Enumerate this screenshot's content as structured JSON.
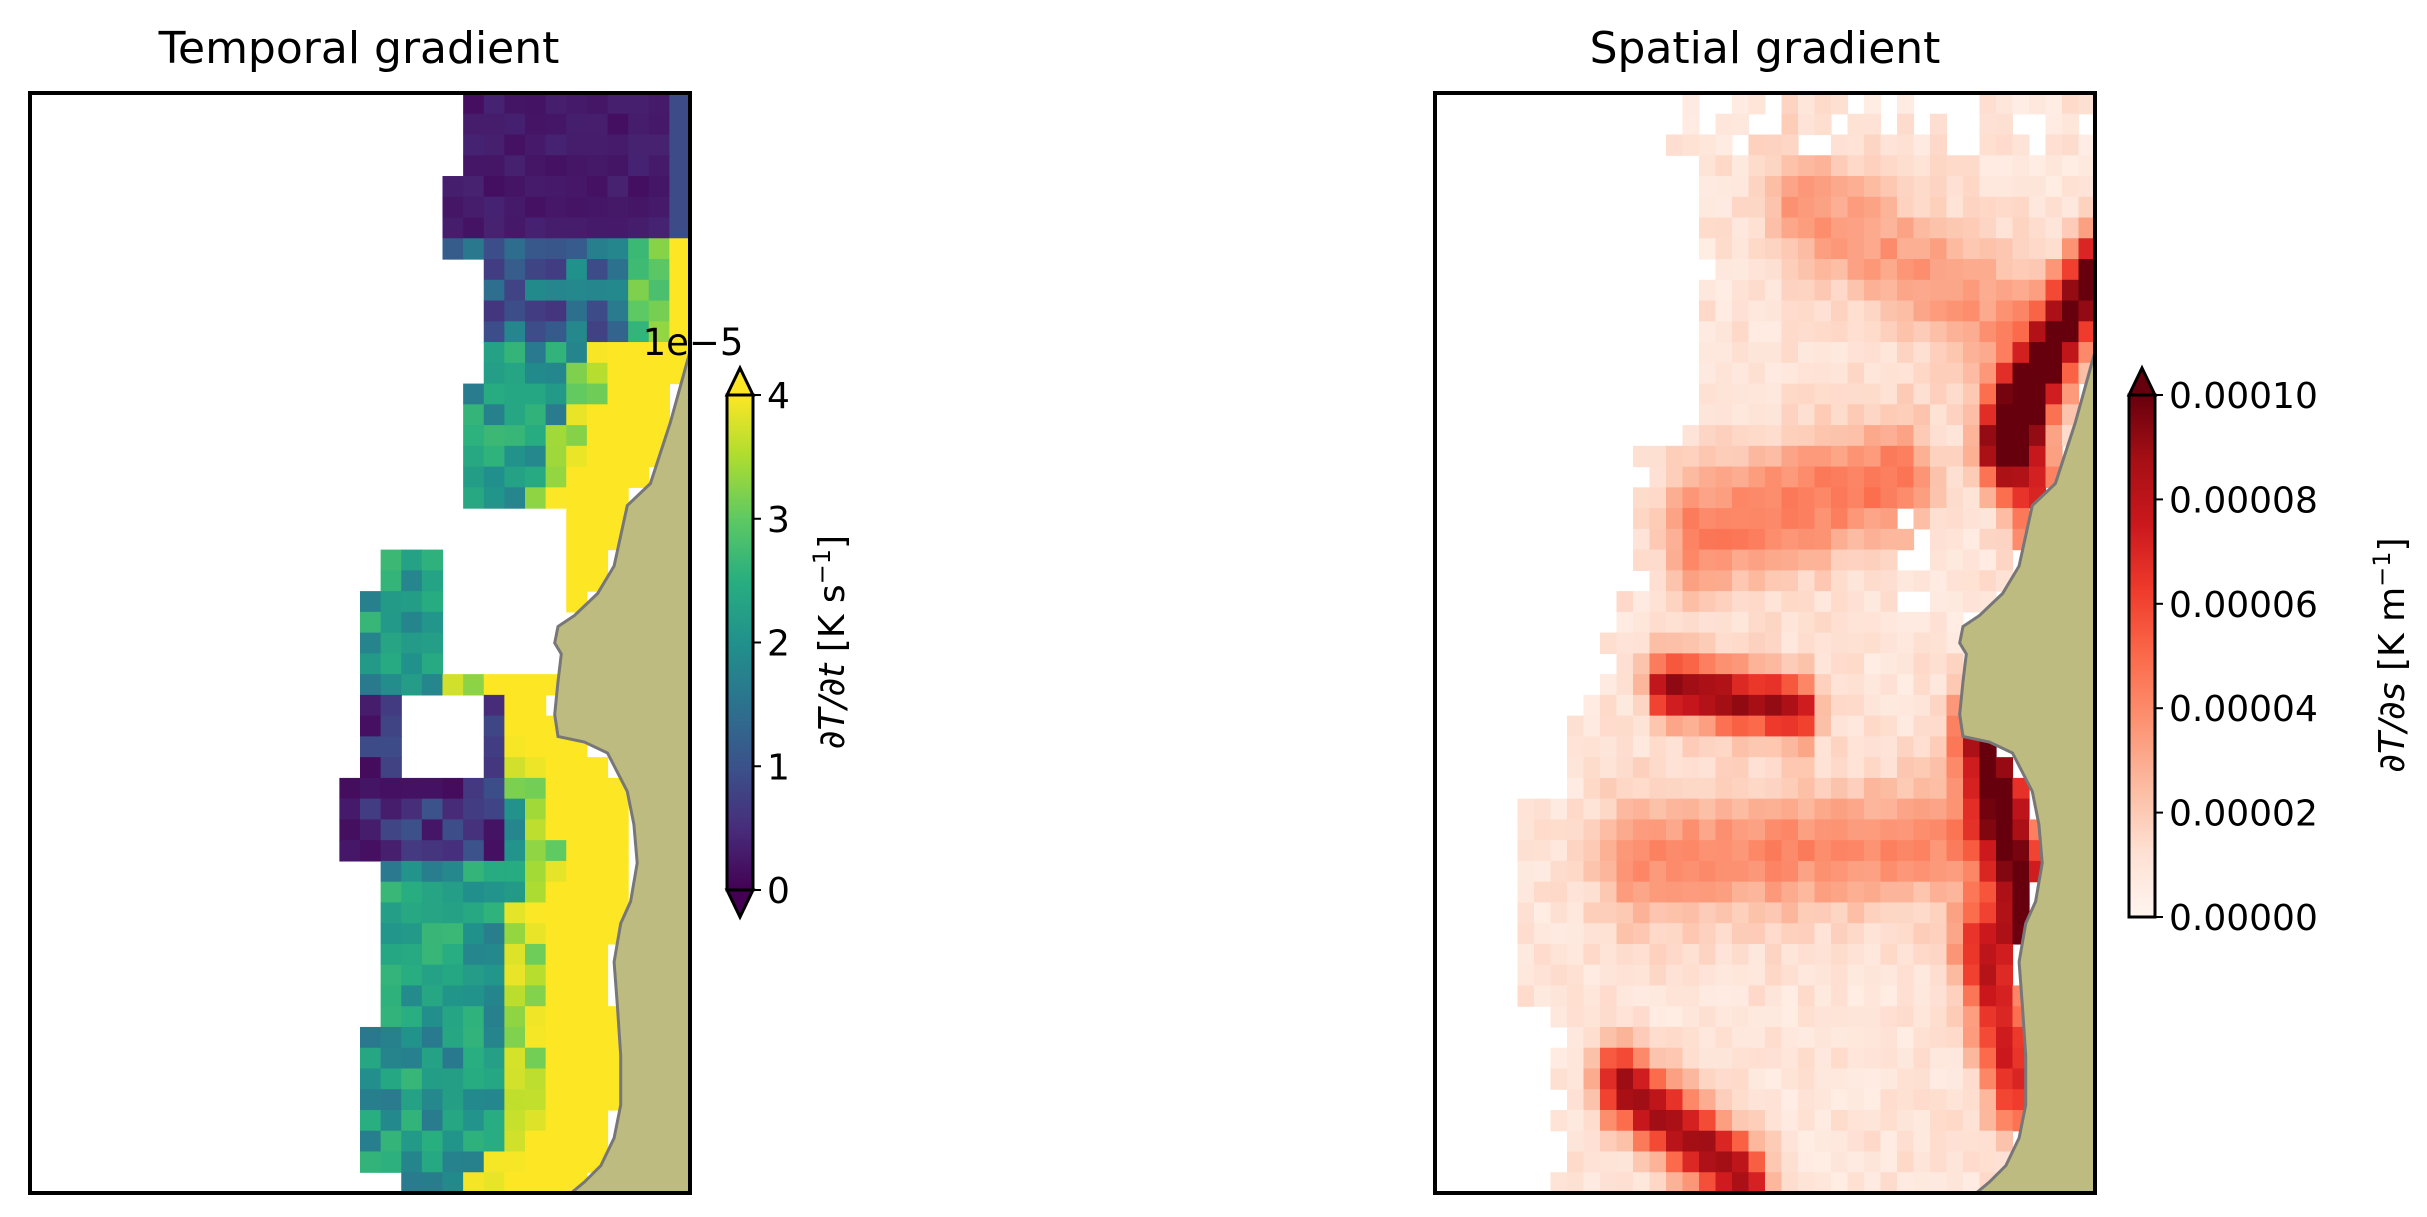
{
  "chart_data": [
    {
      "type": "heatmap",
      "title": "Temporal gradient",
      "colormap": "viridis",
      "colorbar": {
        "label_symbol": "∂T/∂t",
        "label_units": "[K s",
        "label_units_exp": "−1",
        "label_units_close": "]",
        "multiplier": "1e−5",
        "min": 0,
        "max": 4,
        "ticks": [
          0,
          1,
          2,
          3,
          4
        ],
        "tick_labels": [
          "0",
          "1",
          "2",
          "3",
          "4"
        ],
        "extend": "both"
      },
      "land_color": "#bdbb80",
      "grid": false
    },
    {
      "type": "heatmap",
      "title": "Spatial gradient",
      "colormap": "Reds",
      "colorbar": {
        "label_symbol": "∂T/∂s",
        "label_units": "[K m",
        "label_units_exp": "−1",
        "label_units_close": "]",
        "min": 0,
        "max": 0.0001,
        "ticks": [
          0,
          2e-05,
          4e-05,
          6e-05,
          8e-05,
          0.0001
        ],
        "tick_labels": [
          "0.00000",
          "0.00002",
          "0.00004",
          "0.00006",
          "0.00008",
          "0.00010"
        ],
        "extend": "max"
      },
      "land_color": "#bdbb80",
      "grid": false
    }
  ]
}
